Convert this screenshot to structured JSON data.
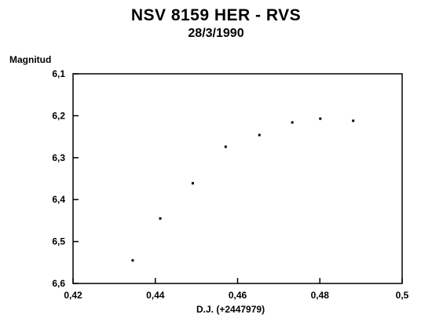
{
  "chart_data": {
    "type": "scatter",
    "title": "NSV 8159 HER - RVS",
    "subtitle": "28/3/1990",
    "xlabel": "D.J. (+2447979)",
    "ylabel": "Magnitud",
    "xlim": [
      0.42,
      0.5
    ],
    "ylim": [
      6.1,
      6.6
    ],
    "y_inverted": true,
    "x_ticks": [
      {
        "value": 0.42,
        "label": "0,42"
      },
      {
        "value": 0.44,
        "label": "0,44"
      },
      {
        "value": 0.46,
        "label": "0,46"
      },
      {
        "value": 0.48,
        "label": "0,48"
      },
      {
        "value": 0.5,
        "label": "0,5"
      }
    ],
    "y_ticks": [
      {
        "value": 6.1,
        "label": "6,1"
      },
      {
        "value": 6.2,
        "label": "6,2"
      },
      {
        "value": 6.3,
        "label": "6,3"
      },
      {
        "value": 6.4,
        "label": "6,4"
      },
      {
        "value": 6.5,
        "label": "6,5"
      },
      {
        "value": 6.6,
        "label": "6,6"
      }
    ],
    "grid": false,
    "series": [
      {
        "points": [
          {
            "x": 0.4345,
            "y": 6.545
          },
          {
            "x": 0.4412,
            "y": 6.445
          },
          {
            "x": 0.4491,
            "y": 6.361
          },
          {
            "x": 0.4571,
            "y": 6.274
          },
          {
            "x": 0.4653,
            "y": 6.246
          },
          {
            "x": 0.4733,
            "y": 6.216
          },
          {
            "x": 0.4801,
            "y": 6.207
          },
          {
            "x": 0.4881,
            "y": 6.212
          }
        ]
      }
    ]
  }
}
